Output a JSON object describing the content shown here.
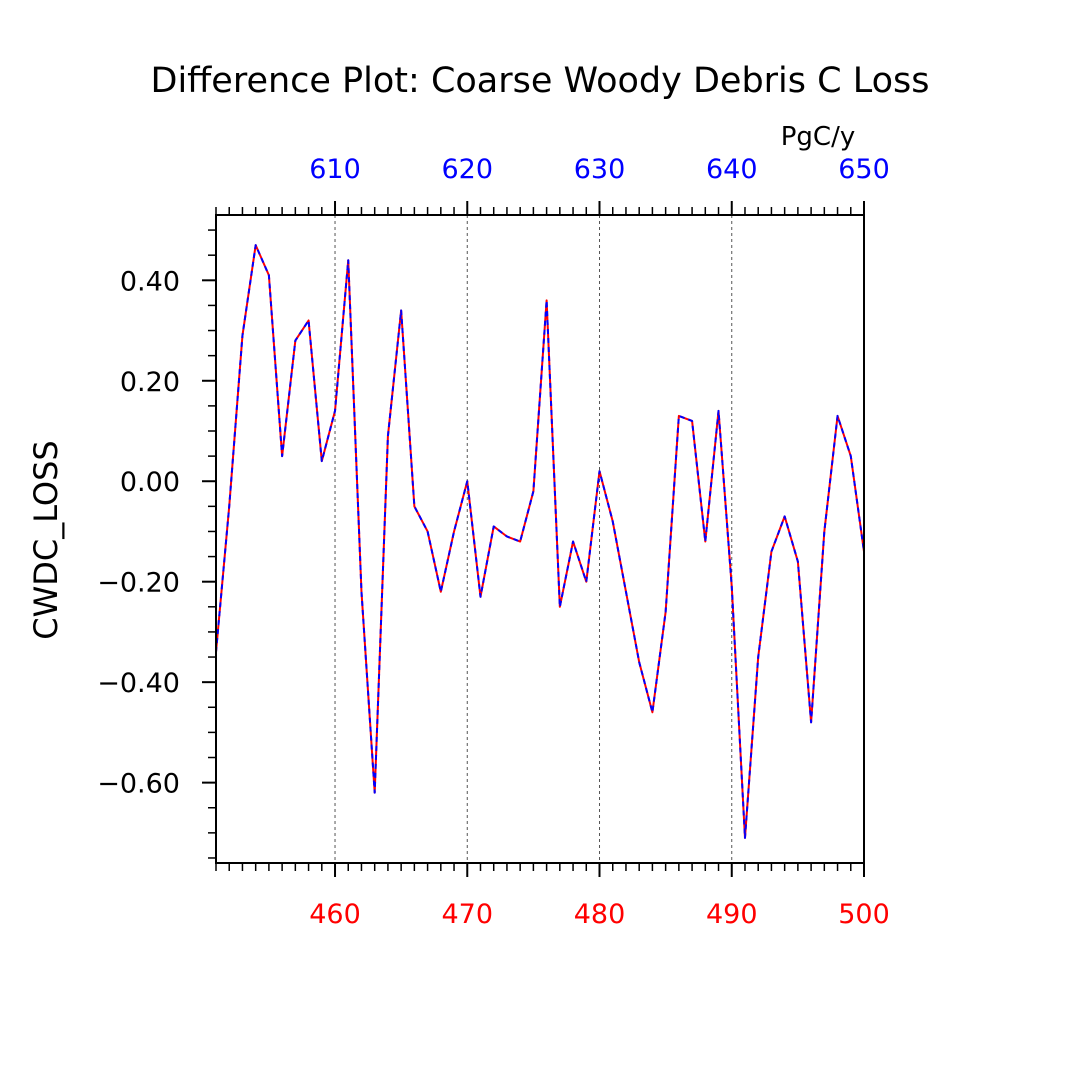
{
  "chart_data": {
    "type": "line",
    "title": "Difference Plot: Coarse Woody Debris C Loss",
    "ylabel": "CWDC_LOSS",
    "units": "PgC/y",
    "ylim": [
      -0.76,
      0.53
    ],
    "y_ticks": [
      {
        "value": 0.4,
        "label": "0.40"
      },
      {
        "value": 0.2,
        "label": "0.20"
      },
      {
        "value": 0.0,
        "label": "0.00"
      },
      {
        "value": -0.2,
        "label": "−0.20"
      },
      {
        "value": -0.4,
        "label": "−0.40"
      },
      {
        "value": -0.6,
        "label": "−0.60"
      }
    ],
    "bottom_axis": {
      "color": "#ff0000",
      "range": [
        451,
        500
      ],
      "ticks": [
        {
          "value": 460,
          "label": "460"
        },
        {
          "value": 470,
          "label": "470"
        },
        {
          "value": 480,
          "label": "480"
        },
        {
          "value": 490,
          "label": "490"
        },
        {
          "value": 500,
          "label": "500"
        }
      ]
    },
    "top_axis": {
      "color": "#0000ff",
      "range": [
        601,
        650
      ],
      "ticks": [
        {
          "value": 610,
          "label": "610"
        },
        {
          "value": 620,
          "label": "620"
        },
        {
          "value": 630,
          "label": "630"
        },
        {
          "value": 640,
          "label": "640"
        },
        {
          "value": 650,
          "label": "650"
        }
      ]
    },
    "grid": "vertical dashed at major ticks",
    "series": [
      {
        "axis": "bottom",
        "color": "#ff0000",
        "style": "solid",
        "x": [
          451,
          452,
          453,
          454,
          455,
          456,
          457,
          458,
          459,
          460,
          461,
          462,
          463,
          464,
          465,
          466,
          467,
          468,
          469,
          470,
          471,
          472,
          473,
          474,
          475,
          476,
          477,
          478,
          479,
          480,
          481,
          482,
          483,
          484,
          485,
          486,
          487,
          488,
          489,
          490,
          491,
          492,
          493,
          494,
          495,
          496,
          497,
          498,
          499,
          500
        ],
        "y": [
          -0.34,
          -0.05,
          0.29,
          0.47,
          0.41,
          0.05,
          0.28,
          0.32,
          0.04,
          0.14,
          0.44,
          -0.22,
          -0.62,
          0.09,
          0.34,
          -0.05,
          -0.1,
          -0.22,
          -0.1,
          0.0,
          -0.23,
          -0.09,
          -0.11,
          -0.12,
          -0.02,
          0.36,
          -0.25,
          -0.12,
          -0.2,
          0.02,
          -0.08,
          -0.22,
          -0.36,
          -0.46,
          -0.26,
          0.13,
          0.12,
          -0.12,
          0.14,
          -0.21,
          -0.71,
          -0.35,
          -0.14,
          -0.07,
          -0.16,
          -0.48,
          -0.1,
          0.13,
          0.05,
          -0.14
        ]
      },
      {
        "axis": "top",
        "color": "#0000ff",
        "style": "dashed",
        "x": [
          601,
          602,
          603,
          604,
          605,
          606,
          607,
          608,
          609,
          610,
          611,
          612,
          613,
          614,
          615,
          616,
          617,
          618,
          619,
          620,
          621,
          622,
          623,
          624,
          625,
          626,
          627,
          628,
          629,
          630,
          631,
          632,
          633,
          634,
          635,
          636,
          637,
          638,
          639,
          640,
          641,
          642,
          643,
          644,
          645,
          646,
          647,
          648,
          649,
          650
        ],
        "y": [
          -0.34,
          -0.05,
          0.29,
          0.47,
          0.41,
          0.05,
          0.28,
          0.32,
          0.04,
          0.14,
          0.44,
          -0.22,
          -0.62,
          0.09,
          0.34,
          -0.05,
          -0.1,
          -0.22,
          -0.1,
          0.0,
          -0.23,
          -0.09,
          -0.11,
          -0.12,
          -0.02,
          0.36,
          -0.25,
          -0.12,
          -0.2,
          0.02,
          -0.08,
          -0.22,
          -0.36,
          -0.46,
          -0.26,
          0.13,
          0.12,
          -0.12,
          0.14,
          -0.21,
          -0.71,
          -0.35,
          -0.14,
          -0.07,
          -0.16,
          -0.48,
          -0.1,
          0.13,
          0.05,
          -0.14
        ]
      }
    ]
  }
}
